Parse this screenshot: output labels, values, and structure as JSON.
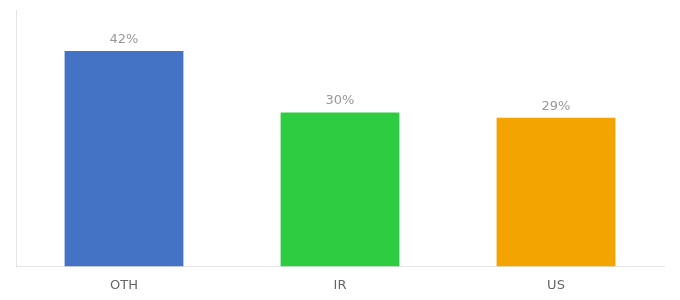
{
  "chart_data": {
    "type": "bar",
    "categories": [
      "OTH",
      "IR",
      "US"
    ],
    "values": [
      42,
      30,
      29
    ],
    "value_labels": [
      "42%",
      "30%",
      "29%"
    ],
    "data_labels": true,
    "colors": [
      "#4472c4",
      "#2ecc40",
      "#f4a400"
    ],
    "ylim": [
      0,
      50
    ],
    "grid": false,
    "tick_labels": "x"
  }
}
